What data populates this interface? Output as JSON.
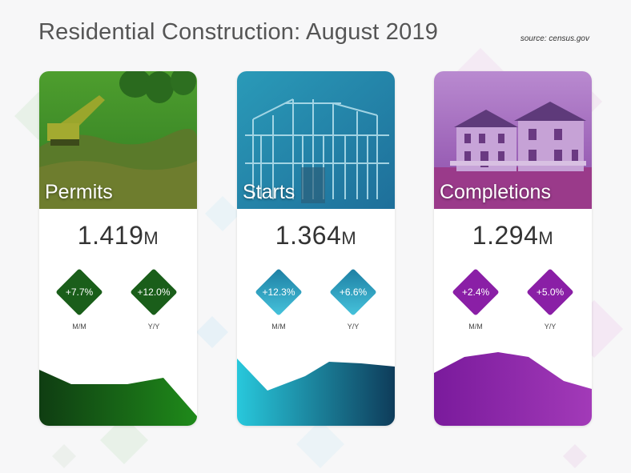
{
  "header": {
    "title": "Residential Construction: August 2019",
    "source": "source: census.gov"
  },
  "colors": {
    "permits": "#1f7a1f",
    "starts": "#1aa8c8",
    "completions": "#8a1fa6"
  },
  "cards": [
    {
      "label": "Permits",
      "value": "1.419",
      "unit": "M",
      "mm": "+7.7%",
      "yy": "+12.0%",
      "mm_label": "M/M",
      "yy_label": "Y/Y",
      "photo": "excavator on construction site"
    },
    {
      "label": "Starts",
      "value": "1.364",
      "unit": "M",
      "mm": "+12.3%",
      "yy": "+6.6%",
      "mm_label": "M/M",
      "yy_label": "Y/Y",
      "photo": "house framing"
    },
    {
      "label": "Completions",
      "value": "1.294",
      "unit": "M",
      "mm": "+2.4%",
      "yy": "+5.0%",
      "mm_label": "M/M",
      "yy_label": "Y/Y",
      "photo": "finished house"
    }
  ]
}
